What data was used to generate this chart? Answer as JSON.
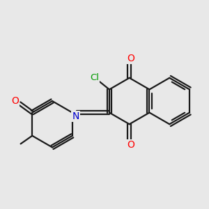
{
  "bg_color": "#e8e8e8",
  "bond_color": "#1a1a1a",
  "atom_colors": {
    "O": "#ff0000",
    "N": "#0000cc",
    "Cl": "#009900"
  },
  "bond_width": 1.6,
  "figsize": [
    3.0,
    3.0
  ],
  "dpi": 100
}
